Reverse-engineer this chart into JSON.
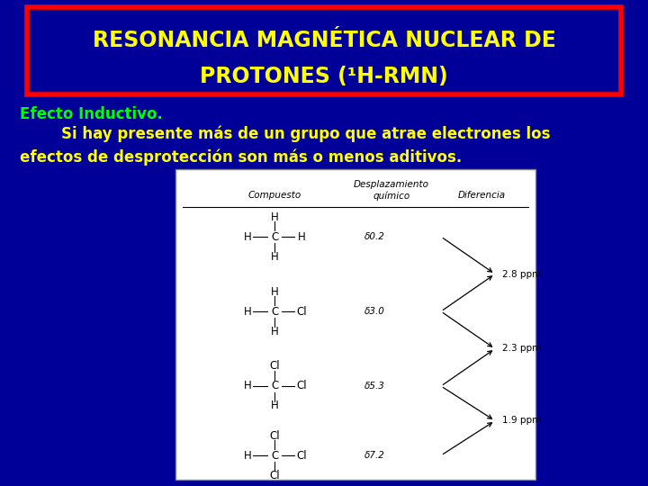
{
  "bg_color": "#000099",
  "title_line1": "RESONANCIA MAGNÉTICA NUCLEAR DE",
  "title_line2": "PROTONES (¹H-RMN)",
  "title_color": "#ffff00",
  "title_box_edge_color": "#ff0000",
  "title_box_face_color": "#000099",
  "subtitle": "Efecto Inductivo.",
  "subtitle_color": "#00ff00",
  "body_text1": "        Si hay presente más de un grupo que atrae electrones los",
  "body_text2": "efectos de desproteccción son más o menos aditivos.",
  "body_text2_correct": "efectos de desprotección son más o menos aditivos.",
  "body_color": "#ffff00",
  "shifts": [
    "δ0.2",
    "δ3.0",
    "δ5.3",
    "δ7.2"
  ],
  "differences": [
    "2.8 ppm",
    "2.3 ppm",
    "1.9 ppm"
  ]
}
